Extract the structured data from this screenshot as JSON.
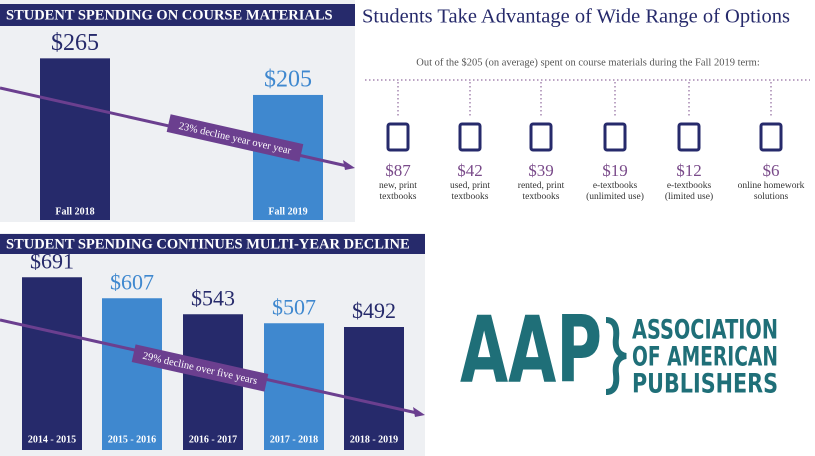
{
  "chart_data": [
    {
      "type": "bar",
      "title": "STUDENT SPENDING ON COURSE MATERIALS",
      "categories": [
        "Fall 2018",
        "Fall 2019"
      ],
      "values": [
        265,
        205
      ],
      "value_labels": [
        "$265",
        "$205"
      ],
      "colors": [
        "#262a6b",
        "#3f88cf"
      ],
      "annotation": "23% decline year over year"
    },
    {
      "type": "bar",
      "title": "STUDENT SPENDING CONTINUES MULTI-YEAR DECLINE",
      "categories": [
        "2014 - 2015",
        "2015 - 2016",
        "2016 - 2017",
        "2017 - 2018",
        "2018 - 2019"
      ],
      "values": [
        691,
        607,
        543,
        507,
        492
      ],
      "value_labels": [
        "$691",
        "$607",
        "$543",
        "$507",
        "$492"
      ],
      "colors": [
        "#262a6b",
        "#3f88cf",
        "#262a6b",
        "#3f88cf",
        "#262a6b"
      ],
      "annotation": "29% decline over five years"
    }
  ],
  "options": {
    "title": "Students Take Advantage of Wide Range of Options",
    "subtitle": "Out of the $205 (on average) spent on course materials during the Fall 2019 term:",
    "items": [
      {
        "amount": "$87",
        "label": [
          "new, print",
          "textbooks"
        ]
      },
      {
        "amount": "$42",
        "label": [
          "used, print",
          "textbooks"
        ]
      },
      {
        "amount": "$39",
        "label": [
          "rented, print",
          "textbooks"
        ]
      },
      {
        "amount": "$19",
        "label": [
          "e-textbooks",
          "(unlimited use)"
        ]
      },
      {
        "amount": "$12",
        "label": [
          "e-textbooks",
          "(limited use)"
        ]
      },
      {
        "amount": "$6",
        "label": [
          "online homework",
          "solutions"
        ]
      }
    ]
  },
  "logo": {
    "mark": "AAP",
    "name": [
      "ASSOCIATION",
      "OF AMERICAN",
      "PUBLISHERS"
    ]
  }
}
